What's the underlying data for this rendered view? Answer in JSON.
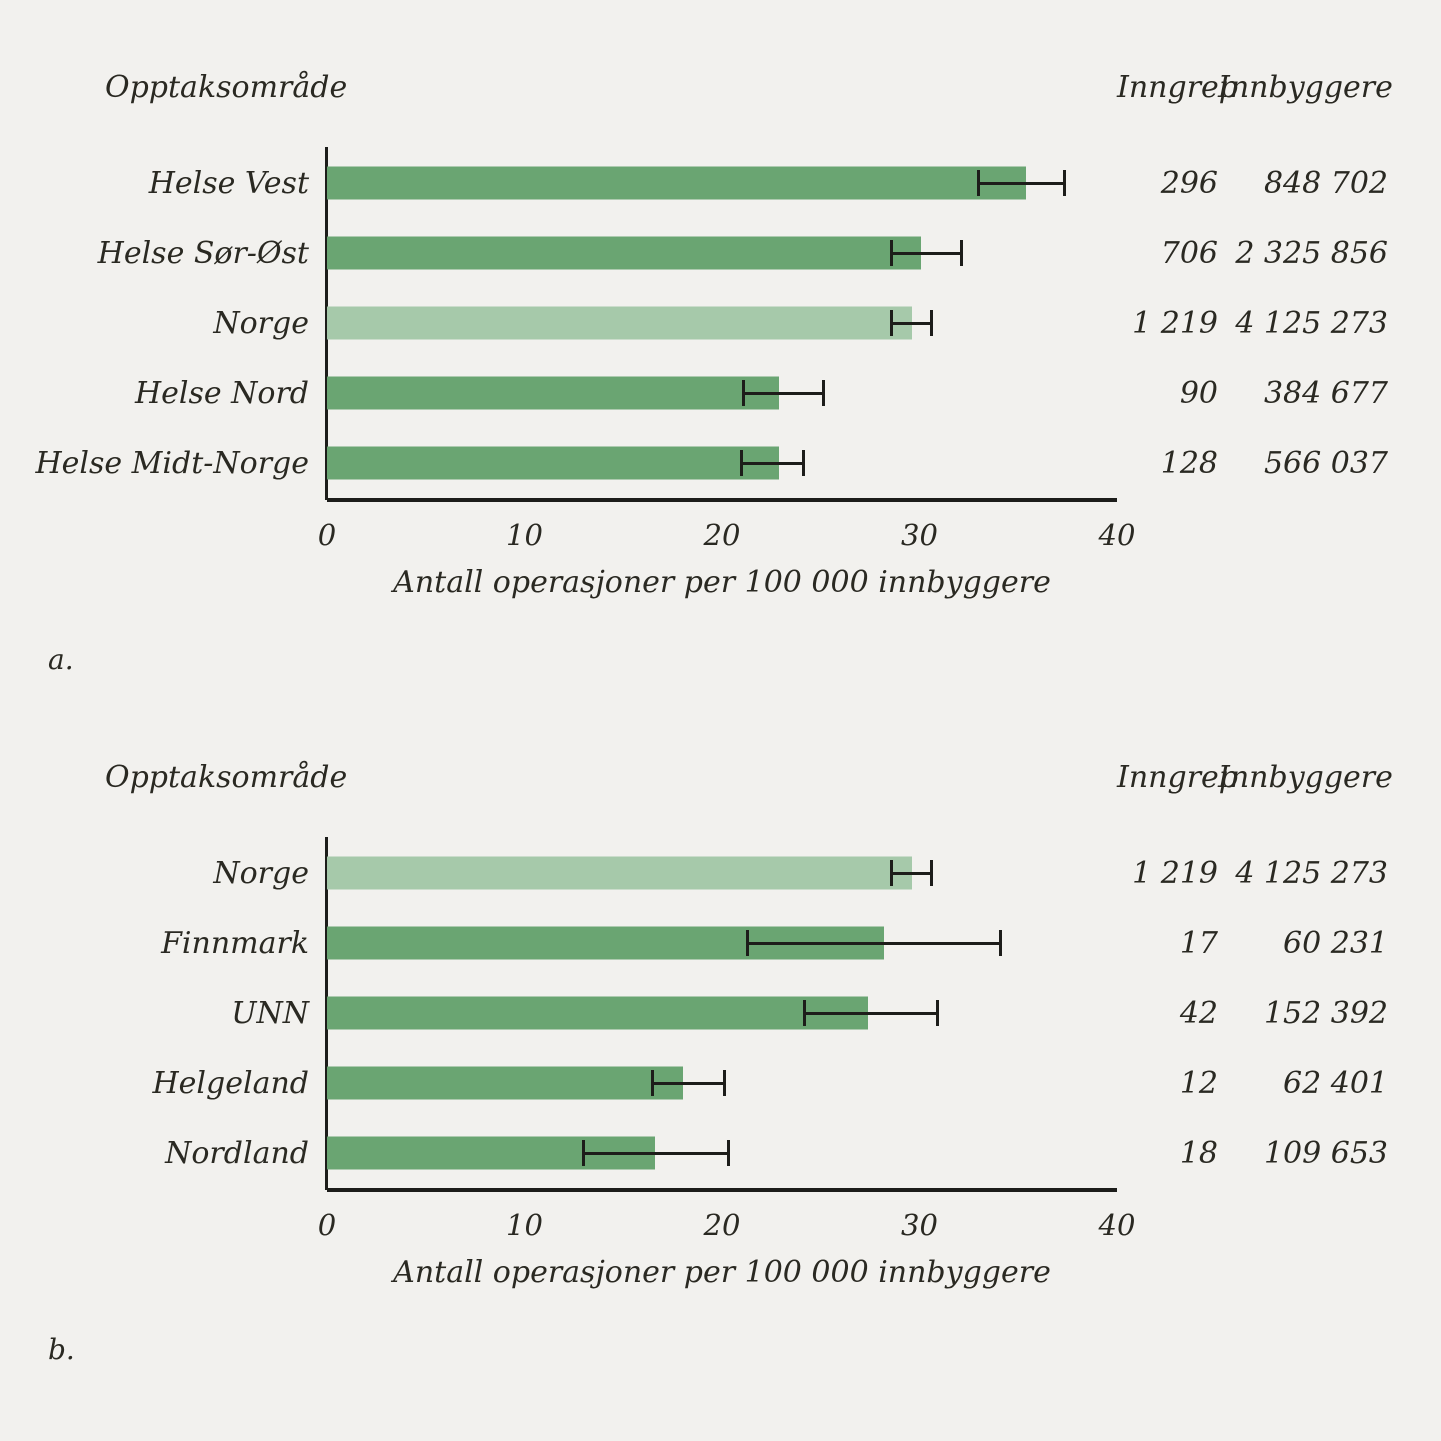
{
  "page": {
    "background": "#f2f1ee"
  },
  "colors": {
    "bar_green": "#6aa572",
    "bar_light_green": "#a6c9aa",
    "axis": "#1d1d1a",
    "text": "#2a2922"
  },
  "chart_data": [
    {
      "type": "bar",
      "orientation": "horizontal",
      "panel_label": "a.",
      "columns": {
        "category": "Opptaksområde",
        "count": "Inngrep",
        "population": "Innbyggere"
      },
      "xlabel": "Antall operasjoner per 100 000 innbyggere",
      "xlim": [
        0,
        40
      ],
      "x_ticks": [
        "0",
        "10",
        "20",
        "30",
        "40"
      ],
      "categories": [
        "Helse Vest",
        "Helse Sør-Øst",
        "Norge",
        "Helse Nord",
        "Helse Midt-Norge"
      ],
      "values": [
        35.4,
        30.1,
        29.6,
        22.9,
        22.9
      ],
      "error_low": [
        32.9,
        28.5,
        28.5,
        21.0,
        20.9
      ],
      "error_high": [
        37.4,
        32.2,
        30.7,
        25.2,
        24.2
      ],
      "highlight_index": 2,
      "inngrep": [
        "296",
        "706",
        "1 219",
        "90",
        "128"
      ],
      "innbyggere": [
        "848 702",
        "2 325 856",
        "4 125 273",
        "384 677",
        "566 037"
      ]
    },
    {
      "type": "bar",
      "orientation": "horizontal",
      "panel_label": "b.",
      "columns": {
        "category": "Opptaksområde",
        "count": "Inngrep",
        "population": "Innbyggere"
      },
      "xlabel": "Antall operasjoner per 100 000 innbyggere",
      "xlim": [
        0,
        40
      ],
      "x_ticks": [
        "0",
        "10",
        "20",
        "30",
        "40"
      ],
      "categories": [
        "Norge",
        "Finnmark",
        "UNN",
        "Helgeland",
        "Nordland"
      ],
      "values": [
        29.6,
        28.2,
        27.4,
        18.0,
        16.6
      ],
      "error_low": [
        28.5,
        21.2,
        24.1,
        16.4,
        12.9
      ],
      "error_high": [
        30.7,
        34.2,
        31.0,
        20.2,
        20.4
      ],
      "highlight_index": 0,
      "inngrep": [
        "1 219",
        "17",
        "42",
        "12",
        "18"
      ],
      "innbyggere": [
        "4 125 273",
        "60 231",
        "152 392",
        "62 401",
        "109 653"
      ]
    }
  ]
}
